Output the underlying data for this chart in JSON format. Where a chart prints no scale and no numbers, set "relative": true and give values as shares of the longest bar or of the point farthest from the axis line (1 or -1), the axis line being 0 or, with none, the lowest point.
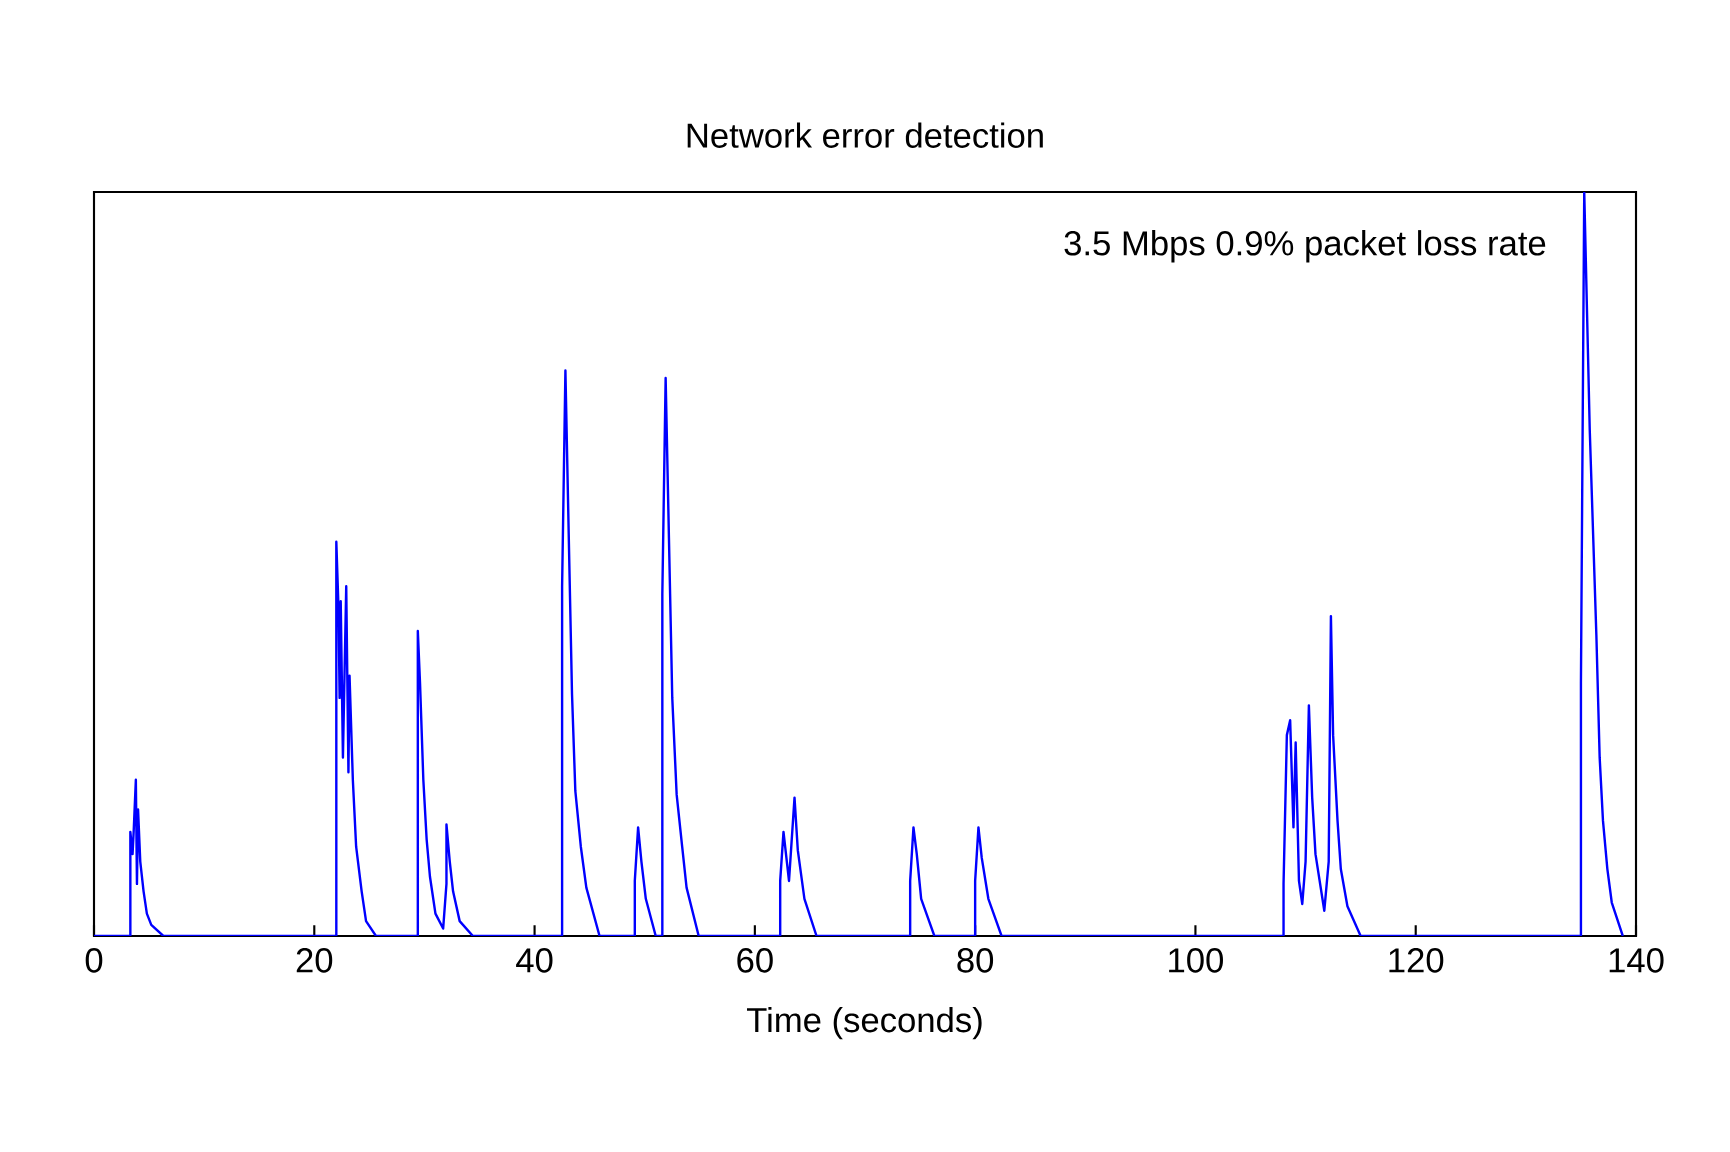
{
  "chart_data": {
    "type": "line",
    "title": "Network error detection",
    "xlabel": "Time (seconds)",
    "annotations": [
      "3.5 Mbps 0.9% packet loss rate"
    ],
    "relative": true,
    "xlim": [
      0,
      140
    ],
    "xticks": [
      0,
      20,
      40,
      60,
      80,
      100,
      120,
      140
    ],
    "series": [
      {
        "color": "#0000ff",
        "x": [
          0,
          3.3,
          3.3,
          3.5,
          3.6,
          3.8,
          3.9,
          4.0,
          4.2,
          4.5,
          4.8,
          5.2,
          6.3,
          22.0,
          22.0,
          22.2,
          22.3,
          22.4,
          22.6,
          22.9,
          23.1,
          23.2,
          23.5,
          23.8,
          24.3,
          24.7,
          25.6,
          29.4,
          29.4,
          29.6,
          29.9,
          30.2,
          30.5,
          31.0,
          31.7,
          32.0,
          32.0,
          32.3,
          32.6,
          33.2,
          34.4,
          42.5,
          42.5,
          42.8,
          43.1,
          43.4,
          43.7,
          44.2,
          44.7,
          45.9,
          49.1,
          49.1,
          49.4,
          49.7,
          50.1,
          51.0,
          51.6,
          51.6,
          51.9,
          52.2,
          52.5,
          52.9,
          53.4,
          53.8,
          54.9,
          62.3,
          62.3,
          62.6,
          63.1,
          63.6,
          63.9,
          64.5,
          65.6,
          74.1,
          74.1,
          74.4,
          74.7,
          75.1,
          76.3,
          80.0,
          80.0,
          80.3,
          80.6,
          81.2,
          82.4,
          108.0,
          108.0,
          108.3,
          108.6,
          108.9,
          109.1,
          109.4,
          109.7,
          110.0,
          110.3,
          110.6,
          110.9,
          111.7,
          112.1,
          112.3,
          112.5,
          112.9,
          113.2,
          113.8,
          115.0,
          135.0,
          135.0,
          135.3,
          135.8,
          136.4,
          136.7,
          137.0,
          137.4,
          137.8,
          138.8
        ],
        "values": [
          0,
          0,
          0.14,
          0.11,
          0.14,
          0.21,
          0.07,
          0.17,
          0.1,
          0.06,
          0.03,
          0.015,
          0,
          0,
          0.53,
          0.44,
          0.32,
          0.45,
          0.24,
          0.47,
          0.22,
          0.35,
          0.21,
          0.12,
          0.06,
          0.02,
          0,
          0,
          0.41,
          0.34,
          0.21,
          0.13,
          0.08,
          0.03,
          0.01,
          0.07,
          0.15,
          0.1,
          0.06,
          0.02,
          0,
          0,
          0.47,
          0.76,
          0.54,
          0.325,
          0.195,
          0.12,
          0.065,
          0,
          0,
          0.074,
          0.146,
          0.1,
          0.05,
          0,
          0,
          0.46,
          0.75,
          0.535,
          0.32,
          0.19,
          0.12,
          0.065,
          0,
          0,
          0.074,
          0.14,
          0.074,
          0.186,
          0.115,
          0.05,
          0,
          0,
          0.074,
          0.146,
          0.11,
          0.05,
          0,
          0,
          0.074,
          0.146,
          0.105,
          0.05,
          0,
          0,
          0.07,
          0.27,
          0.29,
          0.146,
          0.26,
          0.074,
          0.043,
          0.1,
          0.31,
          0.186,
          0.11,
          0.034,
          0.1,
          0.43,
          0.27,
          0.155,
          0.09,
          0.04,
          0,
          0,
          0.34,
          1.0,
          0.68,
          0.405,
          0.24,
          0.155,
          0.09,
          0.045,
          0
        ]
      }
    ]
  }
}
